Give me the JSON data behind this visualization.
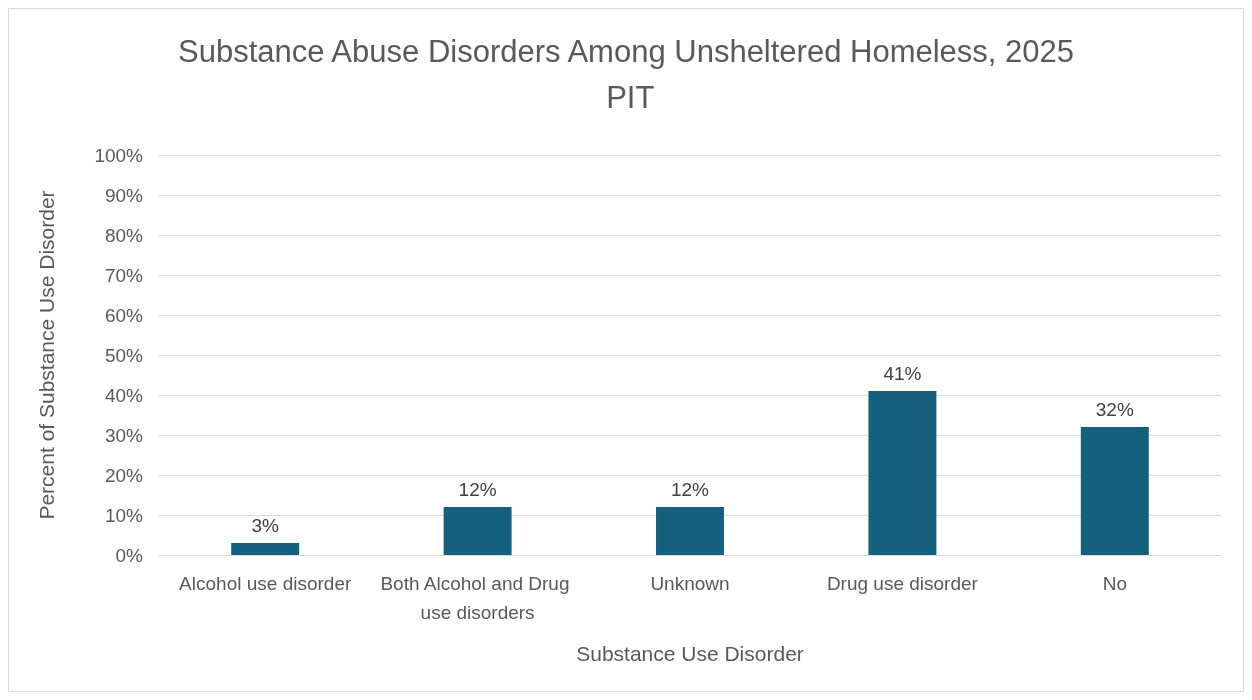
{
  "chart_data": {
    "type": "bar",
    "title": "Substance Abuse Disorders Among Unsheltered Homeless, 2025 PIT",
    "xlabel": "Substance Use Disorder",
    "ylabel": "Percent of Substance Use Disorder",
    "categories": [
      "Alcohol use disorder",
      "Both Alcohol and Drug use disorders",
      "Unknown",
      "Drug use disorder",
      "No"
    ],
    "values": [
      3,
      12,
      12,
      41,
      32
    ],
    "color": "#16607f",
    "data_labels": true,
    "value_labels": [
      "3%",
      "12%",
      "12%",
      "41%",
      "32%"
    ],
    "ylim": [
      0,
      100
    ],
    "yticks": [
      {
        "value": 0,
        "label": "0%"
      },
      {
        "value": 10,
        "label": "10%"
      },
      {
        "value": 20,
        "label": "20%"
      },
      {
        "value": 30,
        "label": "30%"
      },
      {
        "value": 40,
        "label": "40%"
      },
      {
        "value": 50,
        "label": "50%"
      },
      {
        "value": 60,
        "label": "60%"
      },
      {
        "value": 70,
        "label": "70%"
      },
      {
        "value": 80,
        "label": "80%"
      },
      {
        "value": 90,
        "label": "90%"
      },
      {
        "value": 100,
        "label": "100%"
      }
    ],
    "grid": "y"
  }
}
